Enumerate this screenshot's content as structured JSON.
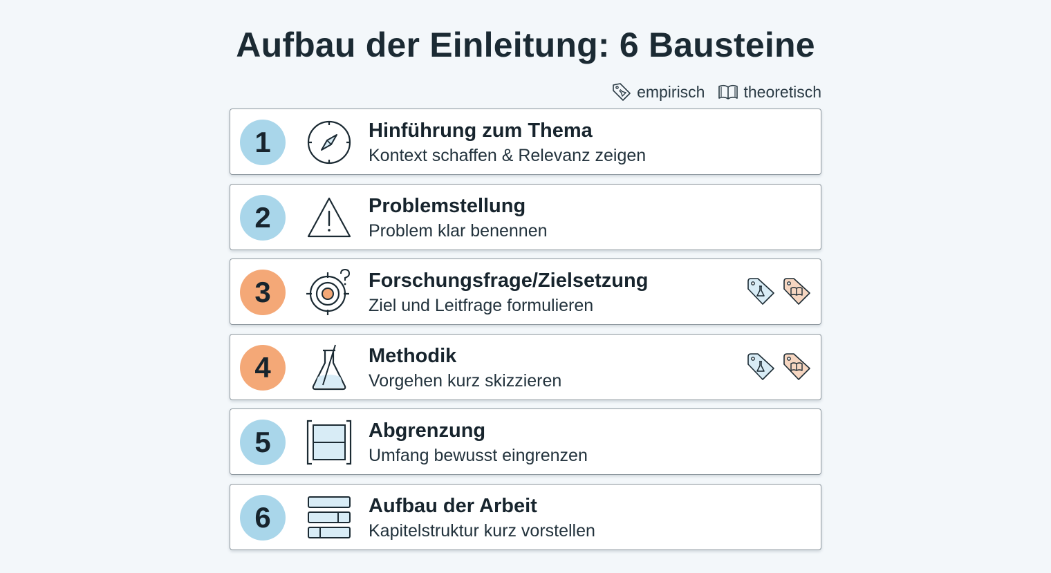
{
  "title": "Aufbau der Einleitung: 6 Bausteine",
  "legend": [
    {
      "label": "empirisch",
      "icon": "flask-tag-icon"
    },
    {
      "label": "theoretisch",
      "icon": "book-icon"
    }
  ],
  "rows": [
    {
      "number": "1",
      "title": "Hinführung zum Thema",
      "subtitle": "Kontext schaffen & Relevanz zeigen",
      "icon": "compass-icon",
      "color": "#a9d6ea",
      "tags": []
    },
    {
      "number": "2",
      "title": "Problemstellung",
      "subtitle": "Problem klar benennen",
      "icon": "warning-icon",
      "color": "#a9d6ea",
      "tags": []
    },
    {
      "number": "3",
      "title": "Forschungsfrage/Zielsetzung",
      "subtitle": "Ziel und Leitfrage formulieren",
      "icon": "target-question-icon",
      "color": "#f4a877",
      "tags": [
        "empirisch",
        "theoretisch"
      ]
    },
    {
      "number": "4",
      "title": "Methodik",
      "subtitle": "Vorgehen kurz skizzieren",
      "icon": "flask-icon",
      "color": "#f4a877",
      "tags": [
        "empirisch",
        "theoretisch"
      ]
    },
    {
      "number": "5",
      "title": "Abgrenzung",
      "subtitle": "Umfang bewusst eingrenzen",
      "icon": "bounded-frame-icon",
      "color": "#a9d6ea",
      "tags": []
    },
    {
      "number": "6",
      "title": "Aufbau der Arbeit",
      "subtitle": "Kapitelstruktur kurz vorstellen",
      "icon": "stack-layers-icon",
      "color": "#a9d6ea",
      "tags": []
    }
  ]
}
